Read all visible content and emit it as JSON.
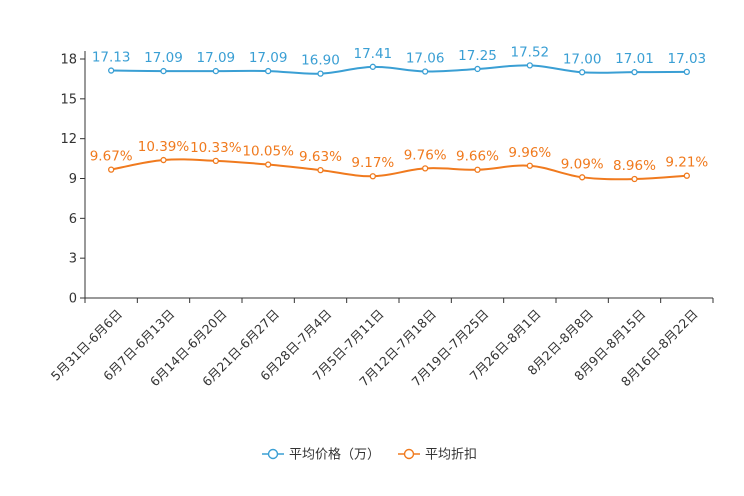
{
  "chart_data": {
    "type": "line",
    "categories": [
      "5月31日-6月6日",
      "6月7日-6月13日",
      "6月14日-6月20日",
      "6月21日-6月27日",
      "6月28日-7月4日",
      "7月5日-7月11日",
      "7月12日-7月18日",
      "7月19日-7月25日",
      "7月26日-8月1日",
      "8月2日-8月8日",
      "8月9日-8月15日",
      "8月16日-8月22日"
    ],
    "y_ticks": [
      "0",
      "3",
      "6",
      "9",
      "12",
      "15",
      "18"
    ],
    "ylim": [
      0,
      18
    ],
    "series": [
      {
        "name": "平均价格（万）",
        "color": "#3a9fd4",
        "values": [
          17.13,
          17.09,
          17.09,
          17.09,
          16.9,
          17.41,
          17.06,
          17.25,
          17.52,
          17.0,
          17.01,
          17.03
        ],
        "labels": [
          "17.13",
          "17.09",
          "17.09",
          "17.09",
          "16.90",
          "17.41",
          "17.06",
          "17.25",
          "17.52",
          "17.00",
          "17.01",
          "17.03"
        ]
      },
      {
        "name": "平均折扣",
        "color": "#f07a1e",
        "values": [
          9.67,
          10.39,
          10.33,
          10.05,
          9.63,
          9.17,
          9.76,
          9.66,
          9.96,
          9.09,
          8.96,
          9.21
        ],
        "labels": [
          "9.67%",
          "10.39%",
          "10.33%",
          "10.05%",
          "9.63%",
          "9.17%",
          "9.76%",
          "9.66%",
          "9.96%",
          "9.09%",
          "8.96%",
          "9.21%"
        ]
      }
    ],
    "legend": {
      "position": "bottom-center"
    }
  }
}
